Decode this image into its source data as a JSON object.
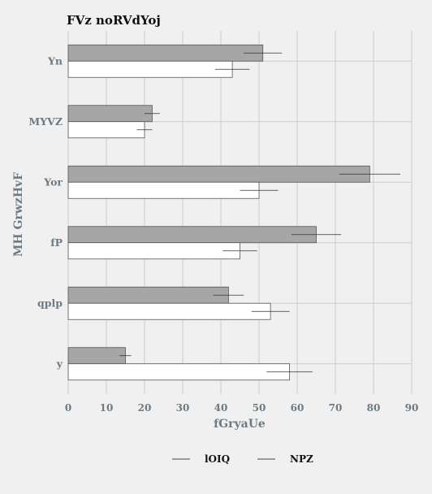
{
  "chart_data": {
    "type": "bar",
    "orientation": "horizontal",
    "title": "FVz noRVdYoj",
    "xlabel": "fGryaUe",
    "ylabel": "MH GrwzHvF",
    "xlim": [
      0,
      90
    ],
    "xticks": [
      0,
      10,
      20,
      30,
      40,
      50,
      60,
      70,
      80,
      90
    ],
    "grid": true,
    "legend_position": "bottom",
    "categories": [
      "Yn",
      "MYVZ",
      "Yor",
      "fP",
      "qplp",
      "y"
    ],
    "series": [
      {
        "name": "lOIQ",
        "color": "#a6a6a6",
        "values": [
          51,
          22,
          79,
          65,
          42,
          15
        ],
        "errors": [
          5,
          2,
          8,
          6.5,
          4,
          1.5
        ]
      },
      {
        "name": "NPZ",
        "color": "#ffffff",
        "values": [
          43,
          20,
          50,
          45,
          53,
          58
        ],
        "errors": [
          4.5,
          2,
          5,
          4.5,
          5,
          6
        ]
      }
    ]
  }
}
